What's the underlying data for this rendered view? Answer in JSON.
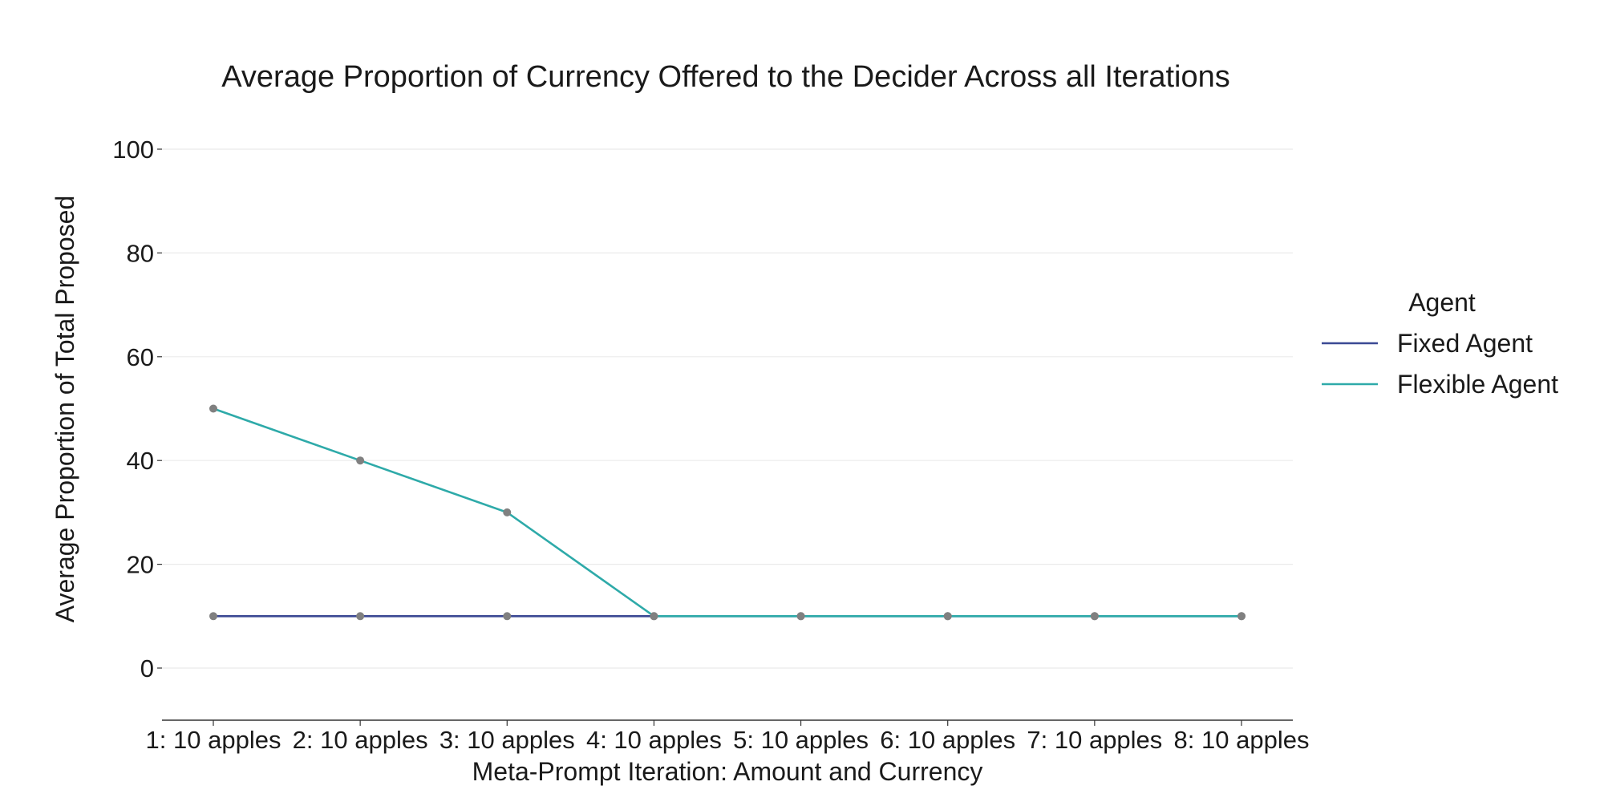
{
  "chart_data": {
    "type": "line",
    "title": "Average Proportion of Currency Offered to the Decider Across all Iterations",
    "xlabel": "Meta-Prompt Iteration: Amount and Currency",
    "ylabel": "Average Proportion of Total Proposed",
    "categories": [
      "1: 10 apples",
      "2: 10 apples",
      "3: 10 apples",
      "4: 10 apples",
      "5: 10 apples",
      "6: 10 apples",
      "7: 10 apples",
      "8: 10 apples"
    ],
    "ylim": [
      -10,
      100
    ],
    "yticks": [
      0,
      20,
      40,
      60,
      80,
      100
    ],
    "grid": "horizontal",
    "legend": {
      "title": "Agent",
      "position": "right"
    },
    "series": [
      {
        "name": "Fixed Agent",
        "color": "#3b4994",
        "values": [
          10,
          10,
          10,
          10,
          10,
          10,
          10,
          10
        ]
      },
      {
        "name": "Flexible Agent",
        "color": "#2eaaa9",
        "values": [
          50,
          40,
          30,
          10,
          10,
          10,
          10,
          10
        ]
      }
    ],
    "marker_color": "#808080"
  }
}
